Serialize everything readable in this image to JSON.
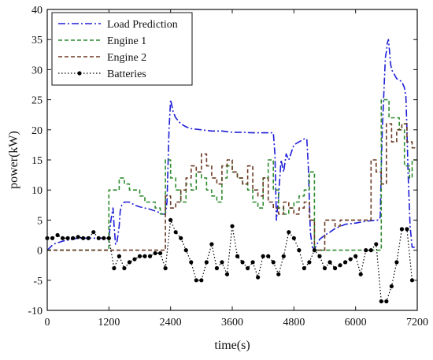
{
  "chart_data": {
    "type": "line",
    "xlabel": "time(s)",
    "ylabel": "power(kW)",
    "xlim": [
      0,
      7200
    ],
    "ylim": [
      -10,
      40
    ],
    "xticks": [
      0,
      1200,
      2400,
      3600,
      4800,
      6000,
      7200
    ],
    "yticks": [
      -10,
      -5,
      0,
      5,
      10,
      15,
      20,
      25,
      30,
      35,
      40
    ],
    "grid": false,
    "legend_position": "top-left",
    "series": [
      {
        "name": "Load Prediction",
        "color": "#1f1fd8",
        "style": "dash-dot",
        "x": [
          0,
          60,
          120,
          300,
          600,
          900,
          1150,
          1200,
          1240,
          1280,
          1300,
          1330,
          1360,
          1400,
          1420,
          1450,
          1500,
          1600,
          1700,
          1800,
          1900,
          2000,
          2100,
          2200,
          2250,
          2300,
          2330,
          2350,
          2370,
          2400,
          2450,
          2500,
          2600,
          2700,
          2800,
          3000,
          3200,
          3400,
          3600,
          3800,
          4000,
          4200,
          4400,
          4430,
          4460,
          4500,
          4550,
          4600,
          4650,
          4700,
          4800,
          4900,
          5000,
          5050,
          5080,
          5120,
          5160,
          5200,
          5250,
          5300,
          5400,
          5500,
          5600,
          5800,
          6000,
          6200,
          6400,
          6450,
          6480,
          6500,
          6520,
          6540,
          6560,
          6580,
          6600,
          6620,
          6640,
          6660,
          6680,
          6700,
          6800,
          6900,
          6950,
          6980,
          7000,
          7020,
          7060,
          7100,
          7150
        ],
        "values": [
          0,
          0.5,
          1,
          1.5,
          2,
          2,
          2,
          2,
          5,
          7,
          4,
          1,
          1.5,
          4,
          6.5,
          7.5,
          8,
          8,
          7.5,
          7.2,
          7,
          6.8,
          6.5,
          6.2,
          6,
          6,
          8,
          14,
          20,
          25,
          23,
          22,
          21,
          20.5,
          20.2,
          20,
          19.8,
          19.8,
          19.6,
          19.6,
          19.5,
          19.5,
          19.5,
          16,
          5,
          9,
          15,
          13,
          16,
          15,
          17.5,
          18,
          18.5,
          18.5,
          14,
          3,
          0.5,
          0.2,
          1,
          1.8,
          2.5,
          3,
          3.6,
          4.3,
          4.5,
          4.8,
          5,
          5,
          5.5,
          14,
          20,
          24,
          28,
          32,
          33,
          34.5,
          35,
          33,
          31,
          30,
          28.5,
          28,
          27,
          25.5,
          20,
          13,
          4,
          0.5,
          0.5
        ]
      },
      {
        "name": "Engine 1",
        "color": "#2e8b2e",
        "style": "dashed",
        "x": [
          0,
          1190,
          1200,
          1400,
          1500,
          1600,
          1800,
          1900,
          2100,
          2200,
          2300,
          2400,
          2500,
          2600,
          2700,
          2800,
          2900,
          3000,
          3100,
          3200,
          3300,
          3400,
          3500,
          3600,
          3700,
          3800,
          3900,
          4000,
          4100,
          4200,
          4300,
          4400,
          4500,
          4600,
          4700,
          4800,
          4900,
          5000,
          5100,
          5200,
          5300,
          5400,
          5600,
          5800,
          6000,
          6200,
          6350,
          6450,
          6500,
          6600,
          6650,
          6750,
          6850,
          6950,
          7050,
          7100,
          7200
        ],
        "values": [
          0,
          0,
          10,
          12,
          11,
          10,
          9,
          8,
          7,
          6,
          15,
          12,
          10,
          8,
          11,
          10,
          13,
          12,
          10,
          9,
          8,
          12,
          14,
          13,
          12,
          11,
          10,
          8,
          7,
          12,
          15,
          10,
          7,
          6,
          7,
          8,
          9,
          10,
          13,
          0,
          0,
          0,
          0,
          0,
          0,
          0,
          0,
          0,
          25,
          25,
          22,
          22,
          20,
          14,
          12,
          15,
          15
        ]
      },
      {
        "name": "Engine 2",
        "color": "#6b3a24",
        "style": "dashed",
        "x": [
          0,
          1190,
          1200,
          1900,
          2000,
          2100,
          2200,
          2300,
          2400,
          2500,
          2600,
          2700,
          2800,
          2900,
          3000,
          3100,
          3200,
          3300,
          3400,
          3500,
          3600,
          3700,
          3800,
          3900,
          4000,
          4100,
          4200,
          4300,
          4400,
          4500,
          4600,
          4700,
          4800,
          4900,
          5000,
          5100,
          5200,
          5300,
          5400,
          5500,
          5600,
          5700,
          5800,
          5900,
          6000,
          6100,
          6200,
          6300,
          6400,
          6500,
          6600,
          6700,
          6800,
          6900,
          7000,
          7100,
          7200
        ],
        "values": [
          0,
          0,
          0,
          0,
          0,
          0,
          0,
          9,
          7,
          8,
          10,
          12,
          14,
          13,
          16,
          14,
          12,
          11,
          14,
          15,
          13,
          12,
          11,
          14,
          10,
          9,
          12,
          8,
          7,
          6,
          8,
          7,
          6,
          7,
          8,
          5,
          0,
          0,
          5,
          5,
          4,
          5,
          5,
          5,
          5,
          5,
          5,
          15,
          13,
          11,
          21,
          18,
          20,
          21,
          18,
          17,
          17
        ]
      },
      {
        "name": "Batteries",
        "color": "#000000",
        "style": "dotted-markers",
        "x": [
          0,
          100,
          200,
          300,
          400,
          500,
          600,
          700,
          800,
          900,
          1000,
          1100,
          1200,
          1300,
          1400,
          1500,
          1600,
          1700,
          1800,
          1900,
          2000,
          2100,
          2200,
          2300,
          2400,
          2500,
          2600,
          2700,
          2800,
          2900,
          3000,
          3100,
          3200,
          3300,
          3400,
          3500,
          3600,
          3700,
          3800,
          3900,
          4000,
          4100,
          4200,
          4300,
          4400,
          4500,
          4600,
          4700,
          4800,
          4900,
          5000,
          5100,
          5200,
          5300,
          5400,
          5500,
          5600,
          5700,
          5800,
          5900,
          6000,
          6100,
          6200,
          6300,
          6400,
          6500,
          6600,
          6700,
          6800,
          6900,
          7000,
          7100
        ],
        "values": [
          2,
          2,
          2.5,
          2,
          2,
          2,
          2.2,
          2,
          2,
          3,
          2,
          2,
          2,
          -3,
          -1,
          -3,
          -2,
          -1.5,
          -1,
          -1,
          -1,
          -0.5,
          -0.5,
          -3,
          5,
          3,
          2,
          0,
          -2,
          -5,
          -5,
          -2,
          1,
          -3,
          -2,
          -4,
          4,
          -1,
          -2,
          -3,
          -2,
          -4.5,
          -1,
          -1,
          -2,
          -4,
          -1,
          3,
          2,
          0,
          -3,
          -2,
          0,
          -1,
          -3,
          -2,
          -3,
          -2.5,
          -2,
          -1.5,
          -1,
          -4,
          0,
          0,
          1,
          -8.5,
          -8.5,
          -6,
          -2,
          3.5,
          3.5,
          -5
        ]
      }
    ]
  }
}
